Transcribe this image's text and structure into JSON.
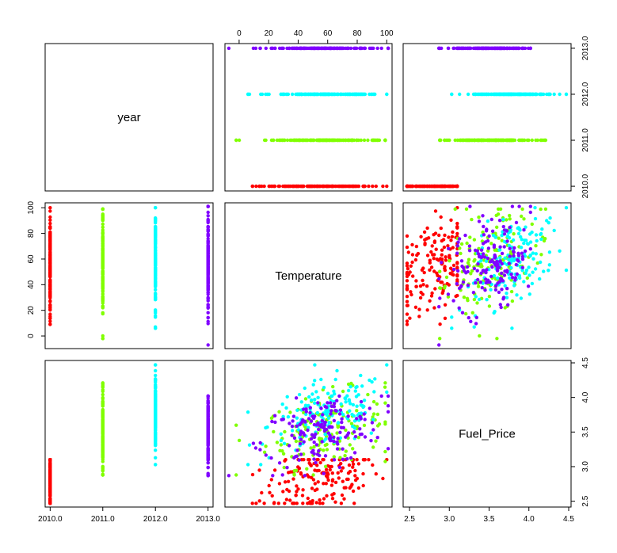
{
  "chart_data": {
    "type": "scatter",
    "variables": [
      "year",
      "Temperature",
      "Fuel_Price"
    ],
    "diagonal_labels": [
      "year",
      "Temperature",
      "Fuel_Price"
    ],
    "ranges": {
      "year": [
        2009.95,
        2013.05
      ],
      "Temperature": [
        -8,
        102
      ],
      "Fuel_Price": [
        2.45,
        4.5
      ]
    },
    "axis_ticks": {
      "year": {
        "values": [
          2010,
          2011,
          2012,
          2013
        ],
        "labels": [
          "2010.0",
          "2011.0",
          "2012.0",
          "2013.0"
        ]
      },
      "Temperature": {
        "values": [
          0,
          20,
          40,
          60,
          80,
          100
        ],
        "labels": [
          "0",
          "20",
          "40",
          "60",
          "80",
          "100"
        ]
      },
      "Fuel_Price": {
        "values": [
          2.5,
          3.0,
          3.5,
          4.0,
          4.5
        ],
        "labels": [
          "2.5",
          "3.0",
          "3.5",
          "4.0",
          "4.5"
        ]
      }
    },
    "groups": [
      {
        "year": 2010,
        "color": "#ff0000",
        "temperature_range": [
          9,
          100
        ],
        "fuel_price_range": [
          2.47,
          3.1
        ],
        "fuel_price_center": 2.8,
        "temperature_center": 55
      },
      {
        "year": 2011,
        "color": "#80ff00",
        "temperature_range": [
          -2,
          99
        ],
        "fuel_price_range": [
          2.88,
          4.21
        ],
        "fuel_price_center": 3.55,
        "temperature_center": 58
      },
      {
        "year": 2012,
        "color": "#00ffff",
        "temperature_range": [
          6,
          100
        ],
        "fuel_price_range": [
          3.03,
          4.47
        ],
        "fuel_price_center": 3.75,
        "temperature_center": 60
      },
      {
        "year": 2013,
        "color": "#8000ff",
        "temperature_range": [
          -7,
          101
        ],
        "fuel_price_range": [
          2.87,
          4.02
        ],
        "fuel_price_center": 3.5,
        "temperature_center": 56
      }
    ]
  }
}
